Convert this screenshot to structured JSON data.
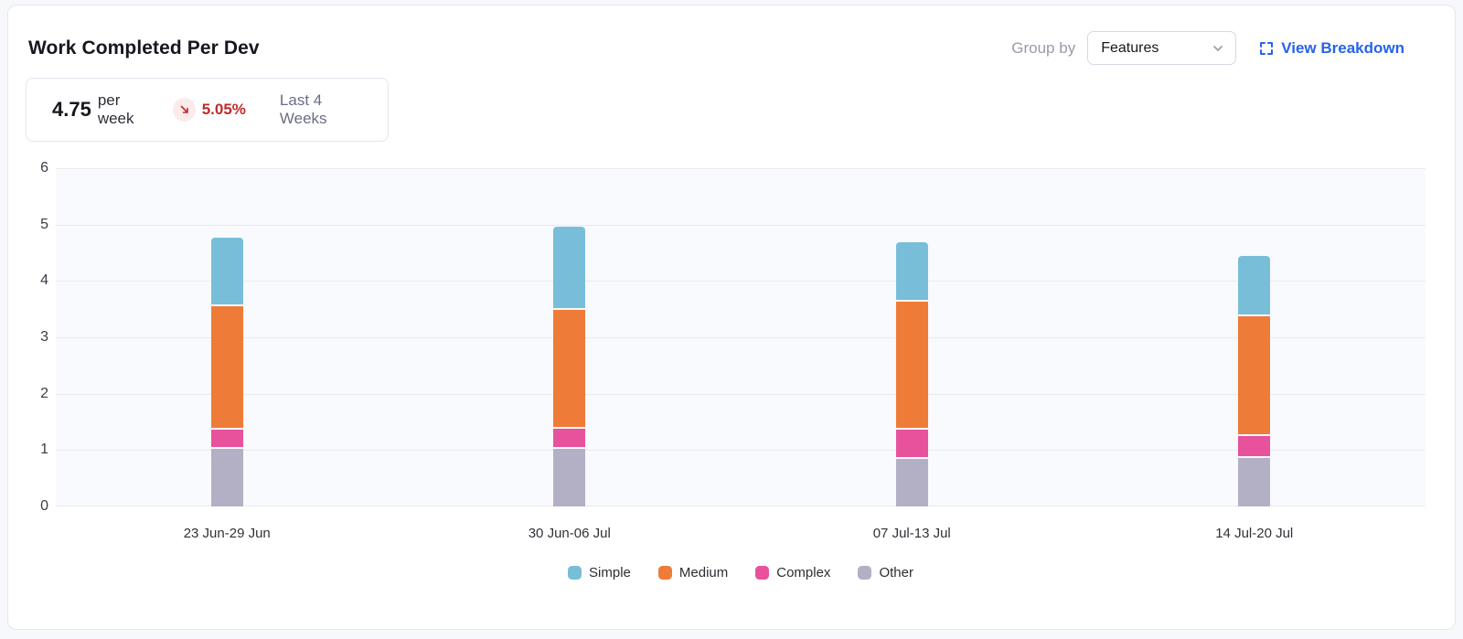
{
  "header": {
    "title": "Work Completed Per Dev",
    "group_by_label": "Group by",
    "group_by_value": "Features",
    "view_breakdown_label": "View Breakdown"
  },
  "stats": {
    "value": "4.75",
    "unit": "per week",
    "delta": "5.05%",
    "delta_direction": "down",
    "period": "Last 4 Weeks"
  },
  "chart_data": {
    "type": "bar",
    "stacked": true,
    "title": "Work Completed Per Dev",
    "categories": [
      "23 Jun-29 Jun",
      "30 Jun-06 Jul",
      "07 Jul-13 Jul",
      "14 Jul-20 Jul"
    ],
    "series": [
      {
        "name": "Simple",
        "color": "#79bed9",
        "values": [
          1.19,
          1.44,
          1.01,
          1.04
        ]
      },
      {
        "name": "Medium",
        "color": "#ef7b38",
        "values": [
          2.18,
          2.11,
          2.27,
          2.13
        ]
      },
      {
        "name": "Complex",
        "color": "#e8519c",
        "values": [
          0.35,
          0.35,
          0.52,
          0.38
        ]
      },
      {
        "name": "Other",
        "color": "#b3b0c5",
        "values": [
          1.05,
          1.06,
          0.88,
          0.9
        ]
      }
    ],
    "totals": [
      4.77,
      4.96,
      4.68,
      4.45
    ],
    "xlabel": "",
    "ylabel": "",
    "ylim": [
      0,
      6
    ],
    "yticks": [
      0,
      1,
      2,
      3,
      4,
      5,
      6
    ],
    "grid": true,
    "legend_position": "bottom",
    "plot_background": "#f9fafd",
    "gridline_color": "#e8eaef"
  },
  "colors": {
    "accent_blue": "#2563eb",
    "negative_red": "#c02b2b",
    "negative_badge_bg": "#fcebea"
  }
}
